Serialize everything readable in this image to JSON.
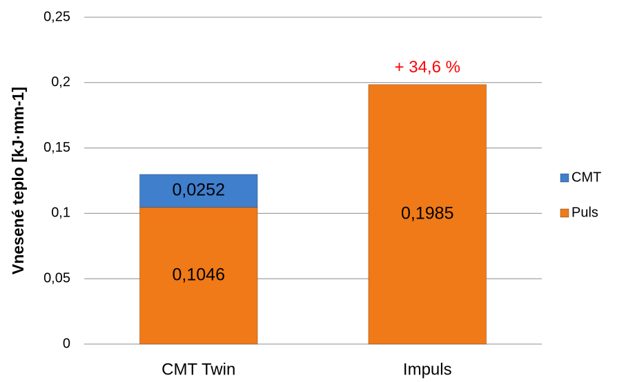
{
  "chart_data": {
    "type": "stacked_bar",
    "ylabel": "Vnesené teplo [kJ·mm-1]",
    "categories": [
      "CMT Twin",
      "Impuls"
    ],
    "series": [
      {
        "name": "Puls",
        "color": "#f07a17",
        "values": [
          0.1046,
          0.1985
        ],
        "value_labels": [
          "0,1046",
          "0,1985"
        ]
      },
      {
        "name": "CMT",
        "color": "#3f7fcc",
        "values": [
          0.0252,
          null
        ],
        "value_labels": [
          "0,0252",
          null
        ]
      }
    ],
    "annotation": "+ 34,6 %",
    "annotation_color": "#ff0000",
    "ylim": [
      0,
      0.25
    ],
    "yticks": [
      0,
      {
        "value": 0.05,
        "label": "0,05"
      },
      {
        "value": 0.1,
        "label": "0,1"
      },
      {
        "value": 0.15,
        "label": "0,15"
      },
      {
        "value": 0.2,
        "label": "0,2"
      },
      {
        "value": 0.25,
        "label": "0,25"
      }
    ],
    "grid": true,
    "legend": "right"
  }
}
